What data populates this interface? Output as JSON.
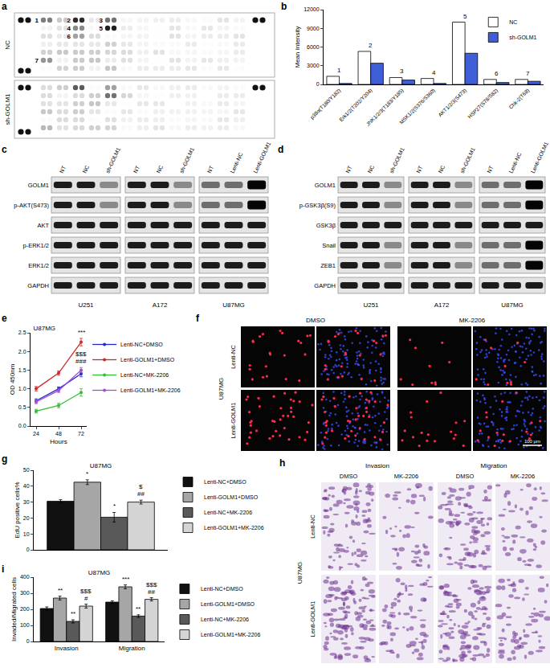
{
  "chart_data": [
    {
      "panel": "b",
      "type": "bar",
      "categories": [
        "p38α(T180/Y182)",
        "Erk1/2(T202/Y204)",
        "JNK1/2/3(T183/Y185)",
        "MSK1/2(S376/S360)",
        "AKT1/2/3(S473)",
        "HSP27(S78/S82)",
        "Chk-2(T68)"
      ],
      "series": [
        {
          "name": "NC",
          "color": "#ffffff",
          "values": [
            1300,
            5300,
            1100,
            950,
            10000,
            800,
            800
          ]
        },
        {
          "name": "sh-GOLM1",
          "color": "#3f5fd8",
          "values": [
            150,
            3400,
            700,
            150,
            5000,
            300,
            500
          ]
        }
      ],
      "ylabel": "Mean Intensity",
      "ylim": [
        0,
        12000
      ],
      "yticks": [
        0,
        3000,
        6000,
        9000,
        12000
      ],
      "legend": "top right",
      "grid": false,
      "annotations": [
        {
          "category": 0,
          "text": "1"
        },
        {
          "category": 1,
          "text": "2"
        },
        {
          "category": 2,
          "text": "3"
        },
        {
          "category": 3,
          "text": "4"
        },
        {
          "category": 4,
          "text": "5"
        },
        {
          "category": 5,
          "text": "6"
        },
        {
          "category": 6,
          "text": "7"
        }
      ]
    },
    {
      "panel": "e",
      "type": "line",
      "title": "U87MG",
      "x": [
        24,
        48,
        72
      ],
      "xlabel": "Hours",
      "ylabel": "OD 450nm",
      "xlim": [
        18,
        78
      ],
      "xticks": [
        24,
        48,
        72
      ],
      "ylim": [
        0,
        2.5
      ],
      "yticks": [
        {
          "value": 0,
          "label": "0.0"
        },
        0.5,
        {
          "value": 1,
          "label": "1.0"
        },
        1.5,
        {
          "value": 2,
          "label": "2.0"
        },
        2.5
      ],
      "marker": "circle",
      "line_style": "solid",
      "legend": "right",
      "grid": false,
      "series": [
        {
          "name": "Lenti-NC+DMSO",
          "color": "#2828d0",
          "values": [
            0.68,
            1.0,
            1.4
          ],
          "error": [
            0.05,
            0.05,
            0.08
          ]
        },
        {
          "name": "Lenti-GOLM1+DMSO",
          "color": "#d02828",
          "values": [
            1.0,
            1.42,
            2.25
          ],
          "error": [
            0.06,
            0.06,
            0.1
          ]
        },
        {
          "name": "Lenti-NC+MK-2206",
          "color": "#30c030",
          "values": [
            0.4,
            0.55,
            0.9
          ],
          "error": [
            0.05,
            0.06,
            0.1
          ]
        },
        {
          "name": "Lenti-GOLM1+MK-2206",
          "color": "#a050d0",
          "values": [
            0.65,
            0.95,
            1.5
          ],
          "error": [
            0.05,
            0.05,
            0.07
          ]
        }
      ],
      "annotations": [
        {
          "series": 1,
          "x": 72,
          "text": "***"
        },
        {
          "series": 3,
          "x": 72,
          "text": "###"
        },
        {
          "series": 3,
          "x": 72,
          "text": "$$$"
        }
      ]
    },
    {
      "panel": "g",
      "type": "bar",
      "title": "U87MG",
      "categories": [
        null
      ],
      "ylabel": "EdU positive cells%",
      "ylim": [
        0,
        50
      ],
      "yticks": [
        0,
        10,
        20,
        30,
        40,
        50
      ],
      "tick_labels": "y",
      "legend": "right",
      "grid": false,
      "series": [
        {
          "name": "Lenti-NC+DMSO",
          "color": "#111111",
          "values": [
            30.5
          ],
          "error": [
            1
          ]
        },
        {
          "name": "Lenti-GOLM1+DMSO",
          "color": "#a6a6a6",
          "values": [
            42.5
          ],
          "error": [
            1.5
          ]
        },
        {
          "name": "Lenti-NC+MK-2206",
          "color": "#595959",
          "values": [
            20.5
          ],
          "error": [
            3
          ]
        },
        {
          "name": "Lenti-GOLM1+MK-2206",
          "color": "#d4d4d4",
          "values": [
            30
          ],
          "error": [
            1.2
          ]
        }
      ],
      "annotations": [
        {
          "series": 1,
          "category": 0,
          "text": "*"
        },
        {
          "series": 2,
          "category": 0,
          "text": "*"
        },
        {
          "series": 3,
          "category": 0,
          "text": "##"
        },
        {
          "series": 3,
          "category": 0,
          "text": "$"
        }
      ]
    },
    {
      "panel": "i",
      "type": "bar",
      "title": "U87MG",
      "categories": [
        "Invasion",
        "Migration"
      ],
      "ylabel": "Invaded/Migrated cells",
      "ylim": [
        0,
        400
      ],
      "yticks": [
        0,
        100,
        200,
        300,
        400
      ],
      "legend": "right",
      "grid": false,
      "series": [
        {
          "name": "Lenti-NC+DMSO",
          "color": "#111111",
          "values": [
            205,
            245
          ],
          "error": [
            10,
            8
          ]
        },
        {
          "name": "Lenti-GOLM1+DMSO",
          "color": "#a6a6a6",
          "values": [
            270,
            340
          ],
          "error": [
            12,
            12
          ]
        },
        {
          "name": "Lenti-NC+MK-2206",
          "color": "#595959",
          "values": [
            125,
            158
          ],
          "error": [
            10,
            8
          ]
        },
        {
          "name": "Lenti-GOLM1+MK-2206",
          "color": "#d4d4d4",
          "values": [
            220,
            262
          ],
          "error": [
            12,
            10
          ]
        }
      ],
      "annotations": [
        {
          "series": 1,
          "category": 0,
          "text": "**"
        },
        {
          "series": 2,
          "category": 0,
          "text": "**"
        },
        {
          "series": 3,
          "category": 0,
          "text": "#"
        },
        {
          "series": 3,
          "category": 0,
          "text": "$$$"
        },
        {
          "series": 1,
          "category": 1,
          "text": "***"
        },
        {
          "series": 2,
          "category": 1,
          "text": "**"
        },
        {
          "series": 3,
          "category": 1,
          "text": "##"
        },
        {
          "series": 3,
          "category": 1,
          "text": "$$$"
        }
      ]
    }
  ],
  "dot_blot": {
    "panel": "a",
    "arrays": [
      "NC",
      "sh-GOLM1"
    ],
    "spot_labels": [
      "1",
      "2",
      "3",
      "4",
      "5",
      "6",
      "7"
    ]
  },
  "western_blots": [
    {
      "panel": "c",
      "rows": [
        "GOLM1",
        "p-AKT(S473)",
        "AKT",
        "p-ERK1/2",
        "ERK1/2",
        "GAPDH"
      ],
      "groups": [
        {
          "cell_line": "U251",
          "lanes": [
            "NT",
            "NC",
            "sh-GOLM1"
          ]
        },
        {
          "cell_line": "A172",
          "lanes": [
            "NT",
            "NC",
            "sh-GOLM1"
          ]
        },
        {
          "cell_line": "U87MG",
          "lanes": [
            "NT",
            "Lenti-NC",
            "Lenti-GOLM1"
          ]
        }
      ]
    },
    {
      "panel": "d",
      "rows": [
        "GOLM1",
        "p-GSK3β(S9)",
        "GSK3β",
        "Snail",
        "ZEB1",
        "GAPDH"
      ],
      "groups": [
        {
          "cell_line": "U251",
          "lanes": [
            "NT",
            "NC",
            "sh-GOLM1"
          ]
        },
        {
          "cell_line": "A172",
          "lanes": [
            "NT",
            "NC",
            "sh-GOLM1"
          ]
        },
        {
          "cell_line": "U87MG",
          "lanes": [
            "NT",
            "Lenti-NC",
            "Lenti-GOLM1"
          ]
        }
      ]
    }
  ],
  "edu_images": {
    "panel": "f",
    "cell_line": "U87MG",
    "columns": [
      "DMSO",
      "MK-2206"
    ],
    "rows": [
      "Lenti-NC",
      "Lenti-GOLM1"
    ],
    "scale_bar": "100 μm"
  },
  "transwell_images": {
    "panel": "h",
    "cell_line": "U87MG",
    "assays": [
      "Invasion",
      "Migration"
    ],
    "columns": [
      "DMSO",
      "MK-2206"
    ],
    "rows": [
      "Lenti-NC",
      "Lenti-GOLM1"
    ]
  }
}
